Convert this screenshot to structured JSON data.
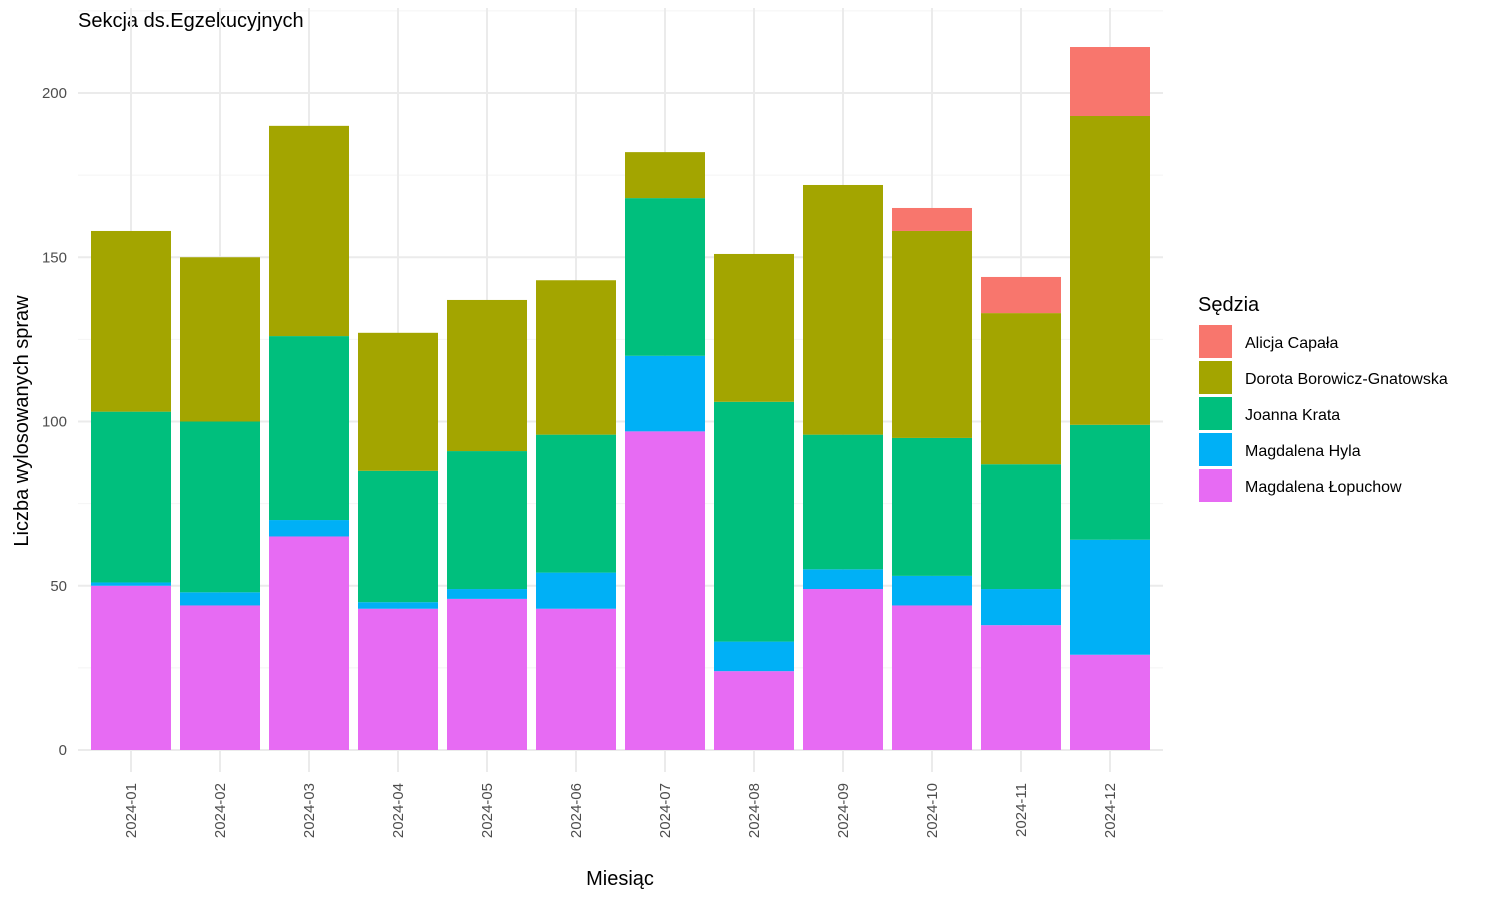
{
  "chart_data": {
    "type": "bar",
    "stacked": true,
    "title": "Sekcja ds.Egzekucyjnych",
    "xlabel": "Miesiąc",
    "ylabel": "Liczba wylosowanych spraw",
    "ylim": [
      0,
      220
    ],
    "yticks": [
      0,
      50,
      100,
      150,
      200
    ],
    "grid": true,
    "legend_title": "Sędzia",
    "legend_position": "right",
    "categories": [
      "2024-01",
      "2024-02",
      "2024-03",
      "2024-04",
      "2024-05",
      "2024-06",
      "2024-07",
      "2024-08",
      "2024-09",
      "2024-10",
      "2024-11",
      "2024-12"
    ],
    "series": [
      {
        "name": "Magdalena Łopuchow",
        "color": "#E76BF3",
        "values": [
          50,
          44,
          65,
          43,
          46,
          43,
          97,
          24,
          49,
          44,
          38,
          29
        ]
      },
      {
        "name": "Magdalena Hyla",
        "color": "#00B0F6",
        "values": [
          1,
          4,
          5,
          2,
          3,
          11,
          23,
          9,
          6,
          9,
          11,
          35
        ]
      },
      {
        "name": "Joanna Krata",
        "color": "#00BF7D",
        "values": [
          52,
          52,
          56,
          40,
          42,
          42,
          48,
          73,
          41,
          42,
          38,
          35
        ]
      },
      {
        "name": "Dorota Borowicz-Gnatowska",
        "color": "#A3A500",
        "values": [
          55,
          50,
          64,
          42,
          46,
          47,
          14,
          45,
          76,
          63,
          46,
          94
        ]
      },
      {
        "name": "Alicja Capała",
        "color": "#F8766D",
        "values": [
          0,
          0,
          0,
          0,
          0,
          0,
          0,
          0,
          0,
          7,
          11,
          21
        ]
      }
    ],
    "legend_order": [
      "Alicja Capała",
      "Dorota Borowicz-Gnatowska",
      "Joanna Krata",
      "Magdalena Hyla",
      "Magdalena Łopuchow"
    ]
  }
}
